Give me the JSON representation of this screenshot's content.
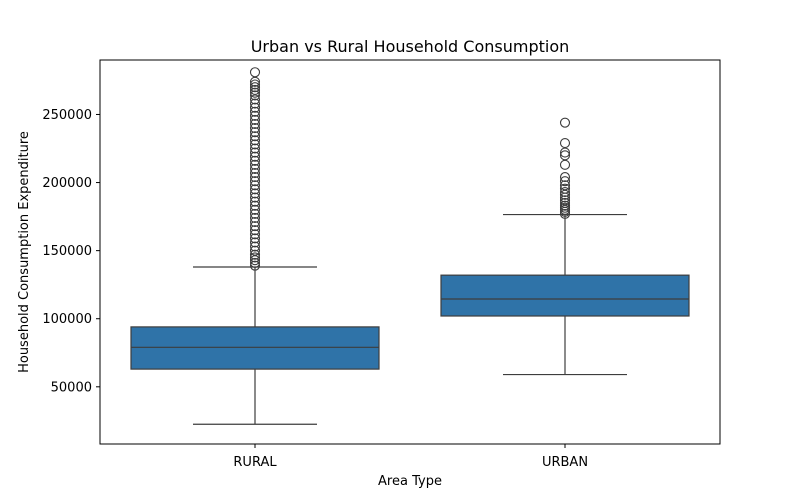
{
  "chart_data": {
    "type": "box",
    "title": "Urban vs Rural Household Consumption",
    "xlabel": "Area Type",
    "ylabel": "Household Consumption Expenditure",
    "categories": [
      "RURAL",
      "URBAN"
    ],
    "ylim": [
      8000,
      290000
    ],
    "yticks": [
      50000,
      100000,
      150000,
      200000,
      250000
    ],
    "ytick_labels": [
      "50000",
      "100000",
      "150000",
      "200000",
      "250000"
    ],
    "box_color": "#2f73a8",
    "edge_color": "#3d3d3d",
    "grid": false,
    "series": [
      {
        "category": "RURAL",
        "whisker_low": 22500,
        "q1": 63000,
        "median": 79000,
        "q3": 94000,
        "whisker_high": 138000,
        "outliers": [
          139000,
          141000,
          143000,
          145000,
          147000,
          150000,
          153000,
          156000,
          159000,
          162000,
          165000,
          168000,
          171000,
          174000,
          177000,
          180000,
          183000,
          186000,
          189000,
          192000,
          195000,
          198000,
          201000,
          204000,
          207000,
          210000,
          213000,
          216000,
          219000,
          222000,
          225000,
          228000,
          231000,
          234000,
          237000,
          240000,
          243000,
          246000,
          249000,
          252000,
          255000,
          258000,
          261000,
          264000,
          266000,
          268000,
          270000,
          272000,
          274000,
          281000
        ]
      },
      {
        "category": "URBAN",
        "whisker_low": 59000,
        "q1": 102000,
        "median": 114500,
        "q3": 132000,
        "whisker_high": 176500,
        "outliers": [
          177000,
          178500,
          180000,
          181500,
          183000,
          185000,
          187000,
          189000,
          191000,
          193000,
          195500,
          198000,
          201000,
          204000,
          213000,
          220000,
          222000,
          229000,
          244000
        ]
      }
    ]
  }
}
